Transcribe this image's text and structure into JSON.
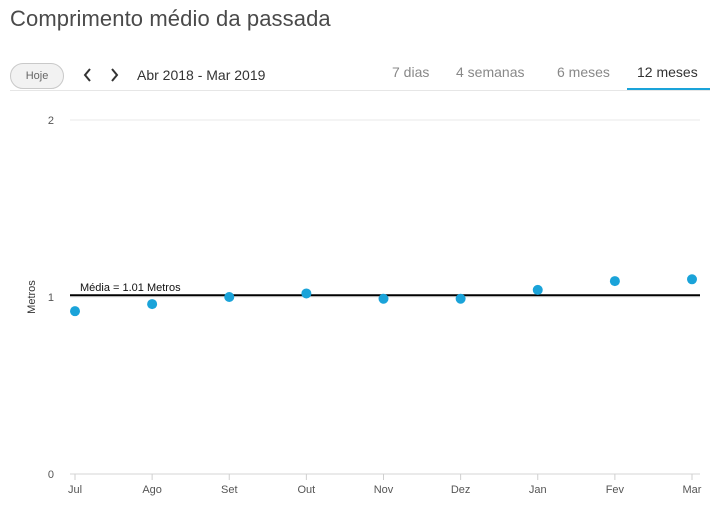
{
  "header": {
    "title": "Comprimento médio da passada"
  },
  "toolbar": {
    "today_label": "Hoje",
    "date_range": "Abr 2018 - Mar 2019",
    "tabs": [
      {
        "label": "7 dias",
        "active": false
      },
      {
        "label": "4 semanas",
        "active": false
      },
      {
        "label": "6 meses",
        "active": false
      },
      {
        "label": "12 meses",
        "active": true
      }
    ],
    "accent_color": "#1aa3d9"
  },
  "chart_data": {
    "type": "scatter",
    "title": "",
    "xlabel": "",
    "ylabel": "Metros",
    "categories": [
      "Jul",
      "Ago",
      "Set",
      "Out",
      "Nov",
      "Dez",
      "Jan",
      "Fev",
      "Mar"
    ],
    "values": [
      0.92,
      0.96,
      1.0,
      1.02,
      0.99,
      0.99,
      1.04,
      1.09,
      1.1
    ],
    "ylim": [
      0,
      2
    ],
    "yticks": [
      0,
      1,
      2
    ],
    "grid": true,
    "point_color": "#1aa3d9",
    "average": {
      "value": 1.01,
      "label": "Média = 1.01 Metros",
      "color": "#000000"
    }
  }
}
